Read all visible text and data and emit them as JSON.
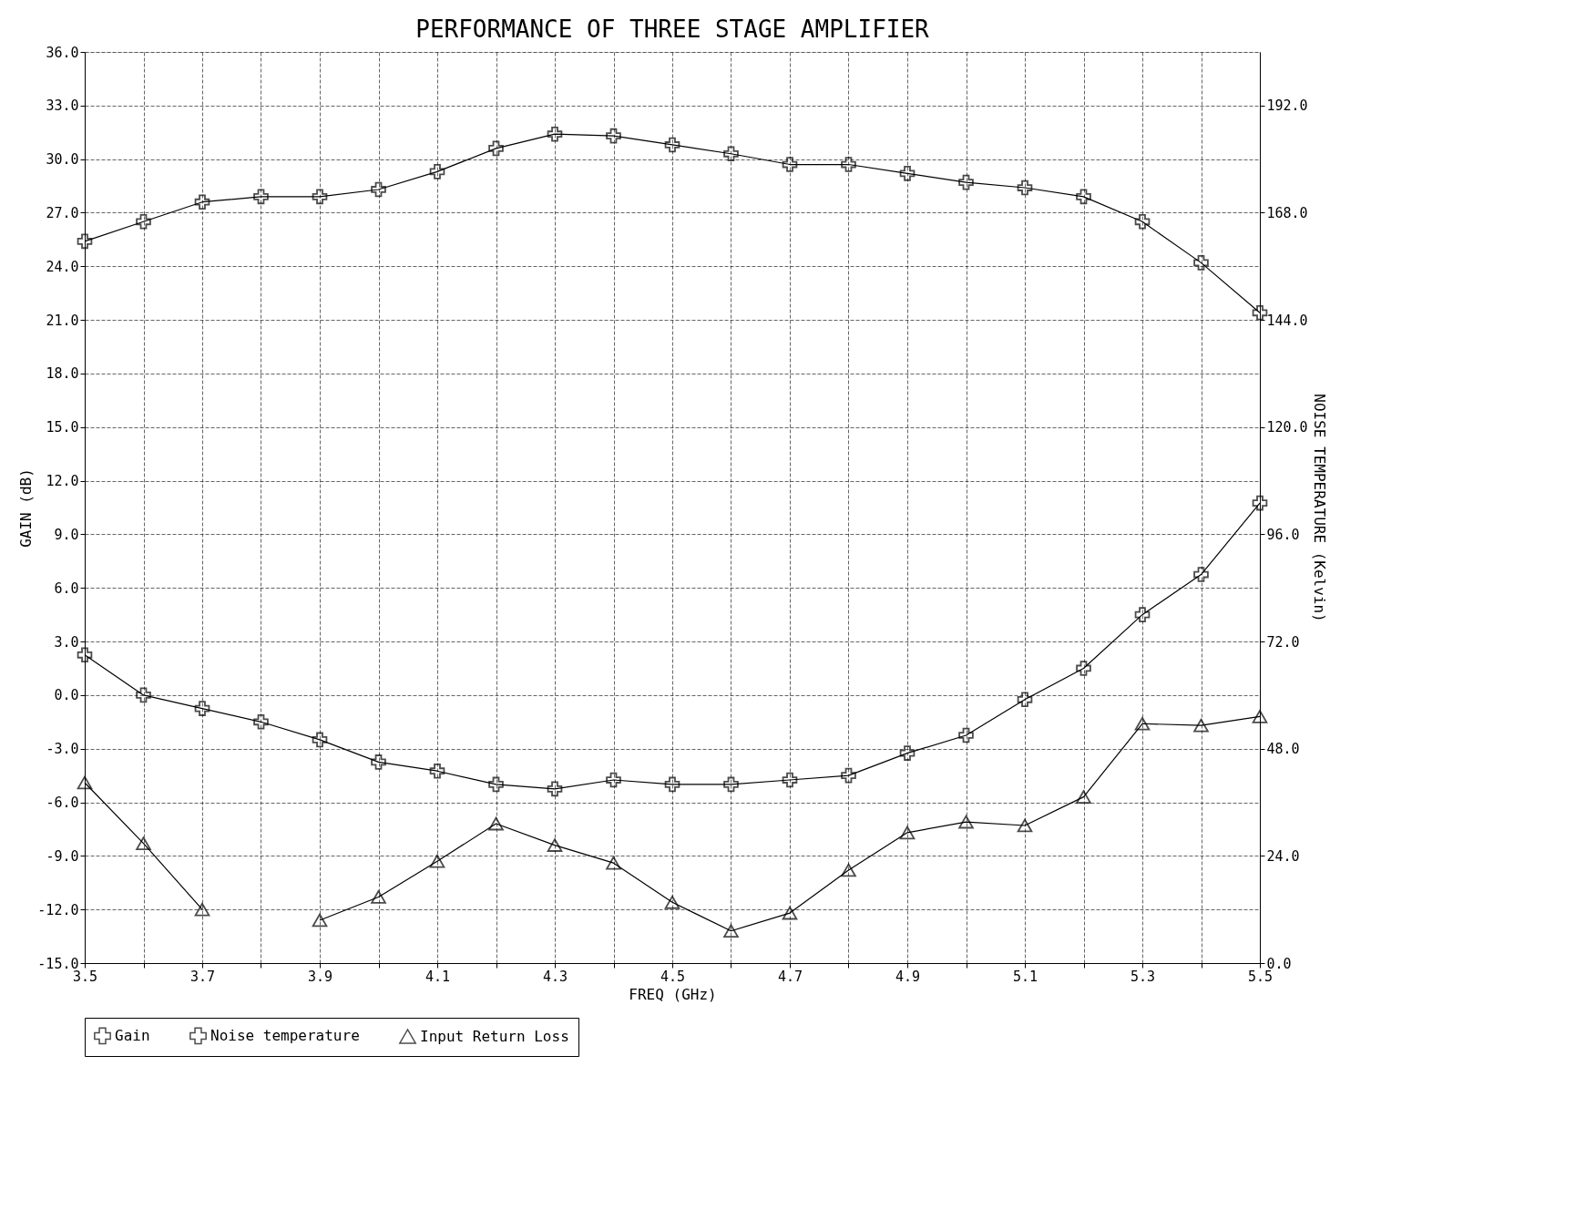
{
  "chart_data": {
    "type": "line",
    "title": "PERFORMANCE OF THREE STAGE AMPLIFIER",
    "xlabel": "FREQ (GHz)",
    "ylabel": "GAIN (dB)",
    "y2label": "NOISE TEMPERATURE (Kelvin)",
    "x": [
      3.5,
      3.6,
      3.7,
      3.8,
      3.9,
      4.0,
      4.1,
      4.2,
      4.3,
      4.4,
      4.5,
      4.6,
      4.7,
      4.8,
      4.9,
      5.0,
      5.1,
      5.2,
      5.3,
      5.4,
      5.5
    ],
    "series": [
      {
        "name": "Gain",
        "color": "#000000",
        "marker": "cross",
        "values": [
          25.4,
          26.5,
          27.6,
          27.9,
          27.9,
          28.3,
          29.3,
          30.6,
          31.4,
          31.3,
          30.8,
          30.3,
          29.7,
          29.7,
          29.2,
          28.7,
          28.4,
          27.9,
          26.5,
          24.2,
          21.4
        ]
      },
      {
        "name": "Noise temperature",
        "color": "#000000",
        "marker": "cross",
        "axis": "y2",
        "values": [
          69,
          60,
          57,
          54,
          50,
          45,
          43,
          40,
          39,
          41,
          40,
          40,
          41,
          42,
          47,
          51,
          59,
          66,
          78,
          87,
          103
        ]
      },
      {
        "name": "Input Return Loss",
        "color": "#000000",
        "marker": "triangle",
        "values": [
          -4.9,
          -8.3,
          -12.0,
          null,
          -12.6,
          -11.3,
          -9.3,
          -7.2,
          -8.4,
          -9.4,
          -11.6,
          -13.2,
          -12.2,
          -9.8,
          -7.7,
          -7.1,
          -7.3,
          -5.7,
          -1.6,
          -1.7,
          -1.2
        ]
      }
    ],
    "xlim": [
      3.5,
      5.5
    ],
    "xticks": [
      3.5,
      {
        "value": 3.6,
        "label": null
      },
      3.7,
      {
        "value": 3.8,
        "label": null
      },
      3.9,
      {
        "value": 4.0,
        "label": null
      },
      4.1,
      {
        "value": 4.2,
        "label": null
      },
      4.3,
      {
        "value": 4.4,
        "label": null
      },
      4.5,
      {
        "value": 4.6,
        "label": null
      },
      4.7,
      {
        "value": 4.8,
        "label": null
      },
      4.9,
      {
        "value": 5.0,
        "label": null
      },
      5.1,
      {
        "value": 5.2,
        "label": null
      },
      5.3,
      {
        "value": 5.4,
        "label": null
      },
      5.5
    ],
    "ylim": [
      -15,
      36
    ],
    "yticks": [
      {
        "value": -15,
        "label": "-15.0"
      },
      {
        "value": -12,
        "label": "-12.0"
      },
      {
        "value": -9,
        "label": "-9.0"
      },
      {
        "value": -6,
        "label": "-6.0"
      },
      {
        "value": -3,
        "label": "-3.0"
      },
      {
        "value": 0,
        "label": "0.0"
      },
      {
        "value": 3,
        "label": "3.0"
      },
      {
        "value": 6,
        "label": "6.0"
      },
      {
        "value": 9,
        "label": "9.0"
      },
      {
        "value": 12,
        "label": "12.0"
      },
      {
        "value": 15,
        "label": "15.0"
      },
      {
        "value": 18,
        "label": "18.0"
      },
      {
        "value": 21,
        "label": "21.0"
      },
      {
        "value": 24,
        "label": "24.0"
      },
      {
        "value": 27,
        "label": "27.0"
      },
      {
        "value": 30,
        "label": "30.0"
      },
      {
        "value": 33,
        "label": "33.0"
      },
      {
        "value": 36,
        "label": "36.0"
      }
    ],
    "y2lim": [
      0,
      204
    ],
    "y2ticks": [
      {
        "value": 0,
        "label": "0.0"
      },
      {
        "value": 24,
        "label": "24.0"
      },
      {
        "value": 48,
        "label": "48.0"
      },
      {
        "value": 72,
        "label": "72.0"
      },
      {
        "value": 96,
        "label": "96.0"
      },
      {
        "value": 120,
        "label": "120.0"
      },
      {
        "value": 144,
        "label": "144.0"
      },
      {
        "value": 168,
        "label": "168.0"
      },
      {
        "value": 192,
        "label": "192.0"
      }
    ],
    "grid": true,
    "legend": "bottom",
    "line_style": "solid"
  }
}
